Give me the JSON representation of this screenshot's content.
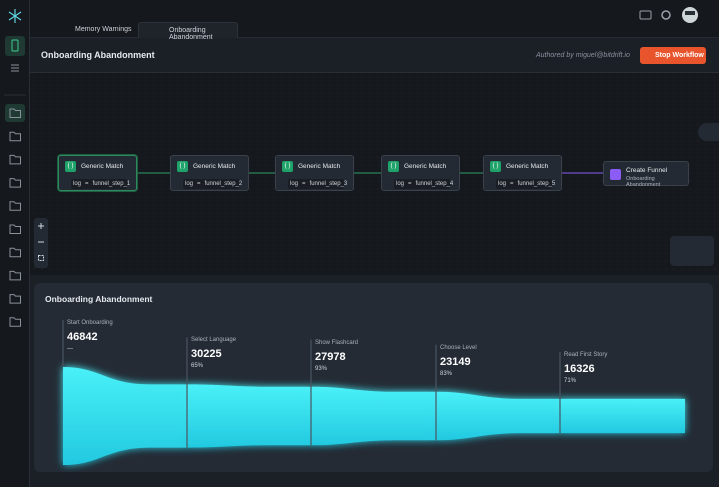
{
  "tabs": [
    "Memory Warnings",
    "Onboarding Abandonment"
  ],
  "header": {
    "title": "Onboarding Abandonment",
    "author": "Authored by miguel@bitdrift.io",
    "button": "Stop Workflow"
  },
  "workflow": {
    "nodes": [
      {
        "title": "Generic Match",
        "field": "log",
        "op": "=",
        "value": "funnel_step_1"
      },
      {
        "title": "Generic Match",
        "field": "log",
        "op": "=",
        "value": "funnel_step_2"
      },
      {
        "title": "Generic Match",
        "field": "log",
        "op": "=",
        "value": "funnel_step_3"
      },
      {
        "title": "Generic Match",
        "field": "log",
        "op": "=",
        "value": "funnel_step_4"
      },
      {
        "title": "Generic Match",
        "field": "log",
        "op": "=",
        "value": "funnel_step_5"
      }
    ],
    "action": {
      "title": "Create Funnel",
      "subtitle": "Onboarding Abandonment"
    }
  },
  "funnel": {
    "title": "Onboarding Abandonment",
    "steps": [
      {
        "label": "Start Onboarding",
        "value": 46842,
        "rate": "—"
      },
      {
        "label": "Select Language",
        "value": 30225,
        "rate": "65%"
      },
      {
        "label": "Show Flashcard",
        "value": 27978,
        "rate": "93%"
      },
      {
        "label": "Choose Level",
        "value": 23149,
        "rate": "83%"
      },
      {
        "label": "Read First Story",
        "value": 16326,
        "rate": "71%"
      }
    ]
  }
}
